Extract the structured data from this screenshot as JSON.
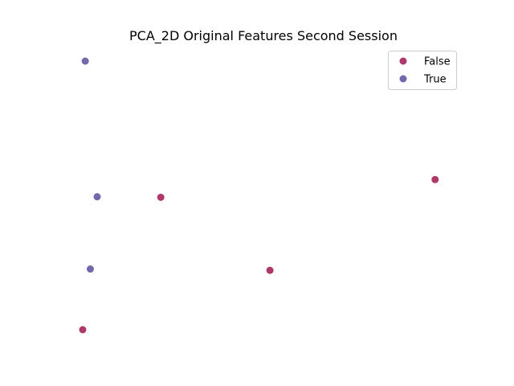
{
  "chart_data": {
    "type": "scatter",
    "title": "PCA_2D Original Features Second Session",
    "xlabel": "",
    "ylabel": "",
    "axes_visible": false,
    "grid": false,
    "xlim": [
      0,
      1
    ],
    "ylim": [
      0,
      1
    ],
    "legend": "top-right",
    "series": [
      {
        "name": "False",
        "color": "#a0154f",
        "points": [
          {
            "x": 0.216,
            "y": 0.493
          },
          {
            "x": 0.975,
            "y": 0.559
          },
          {
            "x": 0.518,
            "y": 0.221
          },
          {
            "x": 0.0,
            "y": 0.0
          }
        ]
      },
      {
        "name": "True",
        "color": "#5c4d9e",
        "points": [
          {
            "x": 0.007,
            "y": 1.0
          },
          {
            "x": 0.04,
            "y": 0.495
          },
          {
            "x": 0.021,
            "y": 0.226
          }
        ]
      }
    ]
  }
}
